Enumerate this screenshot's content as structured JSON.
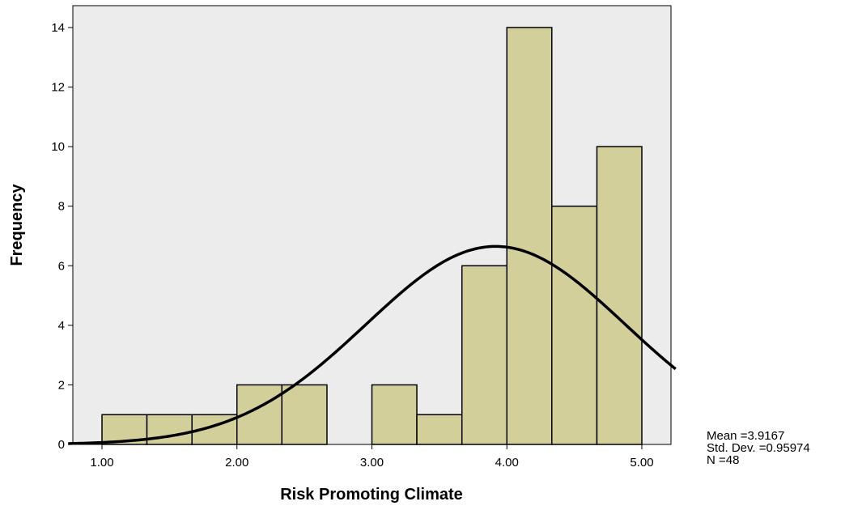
{
  "chart_data": {
    "type": "bar",
    "xlabel": "Risk Promoting Climate",
    "ylabel": "Frequency",
    "xlim": [
      0.75,
      5.25
    ],
    "ylim": [
      0,
      14.8
    ],
    "x_ticks": [
      1.0,
      2.0,
      3.0,
      4.0,
      5.0
    ],
    "x_tick_labels": [
      "1.00",
      "2.00",
      "3.00",
      "4.00",
      "5.00"
    ],
    "y_ticks": [
      0,
      2,
      4,
      6,
      8,
      10,
      12,
      14
    ],
    "y_tick_labels": [
      "0",
      "2",
      "4",
      "6",
      "8",
      "10",
      "12",
      "14"
    ],
    "bins": [
      {
        "start": 1.0,
        "end": 1.333,
        "count": 1
      },
      {
        "start": 1.333,
        "end": 1.667,
        "count": 1
      },
      {
        "start": 1.667,
        "end": 2.0,
        "count": 1
      },
      {
        "start": 2.0,
        "end": 2.333,
        "count": 2
      },
      {
        "start": 2.333,
        "end": 2.667,
        "count": 2
      },
      {
        "start": 2.667,
        "end": 3.0,
        "count": 0
      },
      {
        "start": 3.0,
        "end": 3.333,
        "count": 2
      },
      {
        "start": 3.333,
        "end": 3.667,
        "count": 1
      },
      {
        "start": 3.667,
        "end": 4.0,
        "count": 6
      },
      {
        "start": 4.0,
        "end": 4.333,
        "count": 14
      },
      {
        "start": 4.333,
        "end": 4.667,
        "count": 8
      },
      {
        "start": 4.667,
        "end": 5.0,
        "count": 10
      }
    ],
    "normal_curve": {
      "mean": 3.9167,
      "sd": 0.95974,
      "n": 48,
      "bin_width": 0.3333
    },
    "bar_color": "#d3cf9b",
    "plot_background": "#ececec",
    "grid": false,
    "legend_placement": "bottom-right",
    "stats_lines": [
      "Mean =3.9167",
      "Std. Dev. =0.95974",
      "N =48"
    ]
  }
}
